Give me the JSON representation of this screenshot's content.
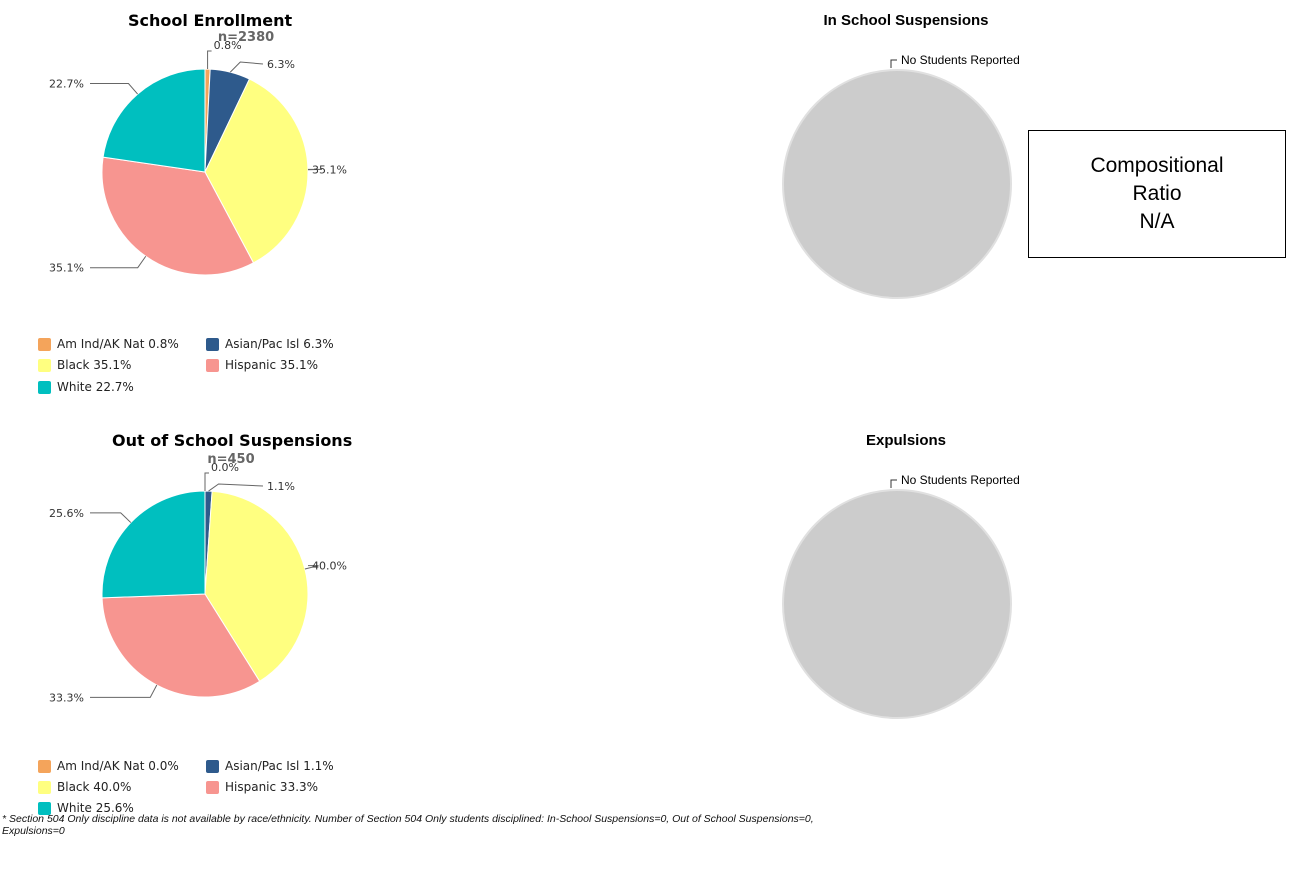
{
  "colors": {
    "am_ind": "#f4a45b",
    "asian": "#2e5a8c",
    "black": "#ffff80",
    "hispanic": "#f79590",
    "white": "#00bfbf",
    "empty": "#cccccc"
  },
  "chart_data": [
    {
      "type": "pie",
      "title": "School Enrollment",
      "n_label": "n=2380",
      "slices": [
        {
          "name": "Am Ind/AK Nat",
          "value": 0.8,
          "label": "0.8%",
          "color": "#f4a45b"
        },
        {
          "name": "Asian/Pac Isl",
          "value": 6.3,
          "label": "6.3%",
          "color": "#2e5a8c"
        },
        {
          "name": "Black",
          "value": 35.1,
          "label": "35.1%",
          "color": "#ffff80"
        },
        {
          "name": "Hispanic",
          "value": 35.1,
          "label": "35.1%",
          "color": "#f79590"
        },
        {
          "name": "White",
          "value": 22.7,
          "label": "22.7%",
          "color": "#00bfbf"
        }
      ],
      "legend": [
        "Am Ind/AK Nat 0.8%",
        "Asian/Pac Isl 6.3%",
        "Black 35.1%",
        "Hispanic 35.1%",
        "White 22.7%"
      ]
    },
    {
      "type": "pie",
      "title": "In School Suspensions",
      "slices": [],
      "no_data_label": "No Students Reported"
    },
    {
      "type": "pie",
      "title": "Out of School Suspensions",
      "n_label": "n=450",
      "slices": [
        {
          "name": "Am Ind/AK Nat",
          "value": 0.0,
          "label": "0.0%",
          "color": "#f4a45b"
        },
        {
          "name": "Asian/Pac Isl",
          "value": 1.1,
          "label": "1.1%",
          "color": "#2e5a8c"
        },
        {
          "name": "Black",
          "value": 40.0,
          "label": "40.0%",
          "color": "#ffff80"
        },
        {
          "name": "Hispanic",
          "value": 33.3,
          "label": "33.3%",
          "color": "#f79590"
        },
        {
          "name": "White",
          "value": 25.6,
          "label": "25.6%",
          "color": "#00bfbf"
        }
      ],
      "legend": [
        "Am Ind/AK Nat 0.0%",
        "Asian/Pac Isl 1.1%",
        "Black 40.0%",
        "Hispanic 33.3%",
        "White 25.6%"
      ]
    },
    {
      "type": "pie",
      "title": "Expulsions",
      "slices": [],
      "no_data_label": "No Students Reported"
    }
  ],
  "ratio_box": {
    "line1": "Compositional",
    "line2": "Ratio",
    "line3": "N/A"
  },
  "footnote": {
    "line1": "* Section 504 Only discipline data is not available by race/ethnicity. Number of Section 504 Only students disciplined: In-School Suspensions=0, Out of School Suspensions=0,",
    "line2": "Expulsions=0"
  }
}
